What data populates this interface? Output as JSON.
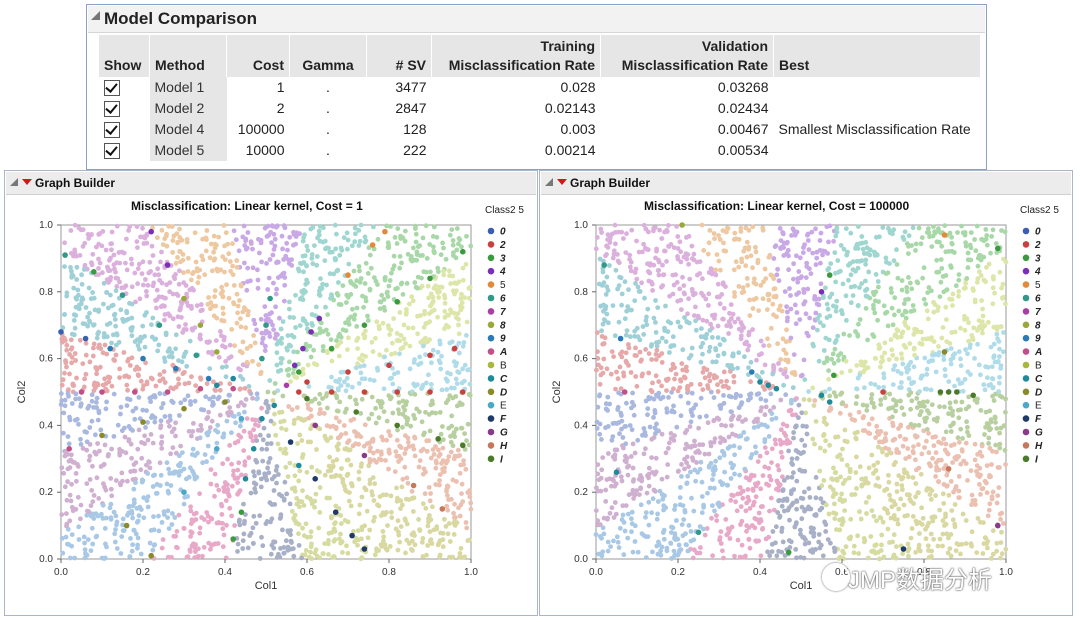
{
  "model_comparison": {
    "title": "Model Comparison",
    "headers": {
      "show": "Show",
      "method": "Method",
      "cost": "Cost",
      "gamma": "Gamma",
      "sv": "# SV",
      "train_line1": "Training",
      "train_line2": "Misclassification Rate",
      "valid_line1": "Validation",
      "valid_line2": "Misclassification Rate",
      "best": "Best"
    },
    "rows": [
      {
        "method": "Model 1",
        "cost": "1",
        "gamma": ".",
        "sv": "3477",
        "train": "0.028",
        "valid": "0.03268",
        "best": ""
      },
      {
        "method": "Model 2",
        "cost": "2",
        "gamma": ".",
        "sv": "2847",
        "train": "0.02143",
        "valid": "0.02434",
        "best": ""
      },
      {
        "method": "Model 4",
        "cost": "100000",
        "gamma": ".",
        "sv": "128",
        "train": "0.003",
        "valid": "0.00467",
        "best": "Smallest Misclassification Rate"
      },
      {
        "method": "Model 5",
        "cost": "10000",
        "gamma": ".",
        "sv": "222",
        "train": "0.00214",
        "valid": "0.00534",
        "best": ""
      }
    ]
  },
  "graph_builder_left": {
    "header": "Graph Builder"
  },
  "graph_builder_right": {
    "header": "Graph Builder"
  },
  "legend": {
    "title": "Class2 5",
    "classes": [
      {
        "label": "0",
        "color": "#3a5fb0",
        "bold": true
      },
      {
        "label": "2",
        "color": "#c8413f",
        "bold": true
      },
      {
        "label": "3",
        "color": "#3a9a3e",
        "bold": true
      },
      {
        "label": "4",
        "color": "#7a2fb6",
        "bold": true
      },
      {
        "label": "5",
        "color": "#e08a3a",
        "bold": false
      },
      {
        "label": "6",
        "color": "#2f9a8a",
        "bold": true
      },
      {
        "label": "7",
        "color": "#a83fa8",
        "bold": true
      },
      {
        "label": "8",
        "color": "#9aa83a",
        "bold": true
      },
      {
        "label": "9",
        "color": "#2a7ab8",
        "bold": true
      },
      {
        "label": "A",
        "color": "#c04f8a",
        "bold": true
      },
      {
        "label": "B",
        "color": "#a8b83a",
        "bold": false
      },
      {
        "label": "C",
        "color": "#1f8a9a",
        "bold": true
      },
      {
        "label": "D",
        "color": "#8a8a2a",
        "bold": true
      },
      {
        "label": "E",
        "color": "#4aa8c8",
        "bold": false
      },
      {
        "label": "F",
        "color": "#1f3a6a",
        "bold": true
      },
      {
        "label": "G",
        "color": "#8a3a8a",
        "bold": true
      },
      {
        "label": "H",
        "color": "#c8785a",
        "bold": true
      },
      {
        "label": "I",
        "color": "#4a7a2a",
        "bold": true
      }
    ]
  },
  "watermark": "JMP数据分析",
  "chart_data": [
    {
      "type": "scatter",
      "title": "Misclassification: Linear kernel, Cost = 1",
      "xlabel": "Col1",
      "ylabel": "Col2",
      "xlim": [
        0,
        1
      ],
      "ylim": [
        0,
        1
      ],
      "x_ticks": [
        "0.0",
        "0.2",
        "0.4",
        "0.6",
        "0.8",
        "1.0"
      ],
      "y_ticks": [
        "0.0",
        "0.2",
        "0.4",
        "0.6",
        "0.8",
        "1.0"
      ],
      "background_classes": 18,
      "center": [
        0.5,
        0.5
      ],
      "misclassified_points": [
        {
          "x": 0.22,
          "y": 0.98,
          "c": "#7a2fb6"
        },
        {
          "x": 0.26,
          "y": 0.88,
          "c": "#7a2fb6"
        },
        {
          "x": 0.3,
          "y": 0.78,
          "c": "#9aa83a"
        },
        {
          "x": 0.34,
          "y": 0.7,
          "c": "#9aa83a"
        },
        {
          "x": 0.38,
          "y": 0.62,
          "c": "#9aa83a"
        },
        {
          "x": 0.01,
          "y": 0.91,
          "c": "#2f9a8a"
        },
        {
          "x": 0.08,
          "y": 0.86,
          "c": "#3a9a3e"
        },
        {
          "x": 0.15,
          "y": 0.79,
          "c": "#2f9a8a"
        },
        {
          "x": 0.24,
          "y": 0.7,
          "c": "#2f9a8a"
        },
        {
          "x": 0.33,
          "y": 0.61,
          "c": "#2f9a8a"
        },
        {
          "x": 0.42,
          "y": 0.54,
          "c": "#1f8a9a"
        },
        {
          "x": 0.0,
          "y": 0.68,
          "c": "#3a5fb0"
        },
        {
          "x": 0.06,
          "y": 0.66,
          "c": "#3a5fb0"
        },
        {
          "x": 0.12,
          "y": 0.63,
          "c": "#2a7ab8"
        },
        {
          "x": 0.2,
          "y": 0.6,
          "c": "#2a7ab8"
        },
        {
          "x": 0.28,
          "y": 0.57,
          "c": "#2a7ab8"
        },
        {
          "x": 0.36,
          "y": 0.54,
          "c": "#2a7ab8"
        },
        {
          "x": 0.05,
          "y": 0.5,
          "c": "#c04f8a"
        },
        {
          "x": 0.1,
          "y": 0.5,
          "c": "#c04f8a"
        },
        {
          "x": 0.18,
          "y": 0.5,
          "c": "#c04f8a"
        },
        {
          "x": 0.26,
          "y": 0.5,
          "c": "#c04f8a"
        },
        {
          "x": 0.34,
          "y": 0.51,
          "c": "#c04f8a"
        },
        {
          "x": 0.42,
          "y": 0.51,
          "c": "#c04f8a"
        },
        {
          "x": 0.02,
          "y": 0.33,
          "c": "#c04f8a"
        },
        {
          "x": 0.1,
          "y": 0.37,
          "c": "#8a8a2a"
        },
        {
          "x": 0.2,
          "y": 0.41,
          "c": "#8a8a2a"
        },
        {
          "x": 0.3,
          "y": 0.45,
          "c": "#8a8a2a"
        },
        {
          "x": 0.4,
          "y": 0.47,
          "c": "#8a8a2a"
        },
        {
          "x": 0.16,
          "y": 0.1,
          "c": "#8a8a2a"
        },
        {
          "x": 0.22,
          "y": 0.01,
          "c": "#8a8a2a"
        },
        {
          "x": 0.3,
          "y": 0.2,
          "c": "#4aa8c8"
        },
        {
          "x": 0.38,
          "y": 0.33,
          "c": "#4aa8c8"
        },
        {
          "x": 0.44,
          "y": 0.42,
          "c": "#4aa8c8"
        },
        {
          "x": 0.42,
          "y": 0.06,
          "c": "#3a9a3e"
        },
        {
          "x": 0.44,
          "y": 0.14,
          "c": "#3a9a3e"
        },
        {
          "x": 0.45,
          "y": 0.24,
          "c": "#1f8a9a"
        },
        {
          "x": 0.47,
          "y": 0.33,
          "c": "#1f8a9a"
        },
        {
          "x": 0.49,
          "y": 0.42,
          "c": "#1f8a9a"
        },
        {
          "x": 0.56,
          "y": 0.35,
          "c": "#1f3a6a"
        },
        {
          "x": 0.62,
          "y": 0.24,
          "c": "#1f3a6a"
        },
        {
          "x": 0.67,
          "y": 0.14,
          "c": "#1f3a6a"
        },
        {
          "x": 0.71,
          "y": 0.07,
          "c": "#1f3a6a"
        },
        {
          "x": 0.74,
          "y": 0.03,
          "c": "#1f3a6a"
        },
        {
          "x": 0.62,
          "y": 0.4,
          "c": "#8a3a8a"
        },
        {
          "x": 0.74,
          "y": 0.31,
          "c": "#8a3a8a"
        },
        {
          "x": 0.86,
          "y": 0.22,
          "c": "#c8785a"
        },
        {
          "x": 0.93,
          "y": 0.15,
          "c": "#c8785a"
        },
        {
          "x": 0.6,
          "y": 0.48,
          "c": "#4a7a2a"
        },
        {
          "x": 0.72,
          "y": 0.44,
          "c": "#4a7a2a"
        },
        {
          "x": 0.82,
          "y": 0.4,
          "c": "#4a7a2a"
        },
        {
          "x": 0.92,
          "y": 0.36,
          "c": "#4a7a2a"
        },
        {
          "x": 0.98,
          "y": 0.34,
          "c": "#4a7a2a"
        },
        {
          "x": 0.58,
          "y": 0.5,
          "c": "#c8413f"
        },
        {
          "x": 0.66,
          "y": 0.5,
          "c": "#c8413f"
        },
        {
          "x": 0.74,
          "y": 0.5,
          "c": "#c8413f"
        },
        {
          "x": 0.82,
          "y": 0.5,
          "c": "#c8413f"
        },
        {
          "x": 0.9,
          "y": 0.5,
          "c": "#c8413f"
        },
        {
          "x": 0.98,
          "y": 0.5,
          "c": "#c8413f"
        },
        {
          "x": 0.6,
          "y": 0.53,
          "c": "#c8413f"
        },
        {
          "x": 0.7,
          "y": 0.56,
          "c": "#c8413f"
        },
        {
          "x": 0.8,
          "y": 0.58,
          "c": "#c8413f"
        },
        {
          "x": 0.9,
          "y": 0.61,
          "c": "#c8413f"
        },
        {
          "x": 0.96,
          "y": 0.63,
          "c": "#c8413f"
        },
        {
          "x": 0.58,
          "y": 0.56,
          "c": "#3a9a3e"
        },
        {
          "x": 0.66,
          "y": 0.63,
          "c": "#3a9a3e"
        },
        {
          "x": 0.74,
          "y": 0.7,
          "c": "#3a9a3e"
        },
        {
          "x": 0.82,
          "y": 0.77,
          "c": "#3a9a3e"
        },
        {
          "x": 0.9,
          "y": 0.84,
          "c": "#3a9a3e"
        },
        {
          "x": 0.98,
          "y": 0.92,
          "c": "#3a9a3e"
        },
        {
          "x": 0.55,
          "y": 0.52,
          "c": "#a83fa8"
        },
        {
          "x": 0.57,
          "y": 0.58,
          "c": "#7a2fb6"
        },
        {
          "x": 0.59,
          "y": 0.63,
          "c": "#7a2fb6"
        },
        {
          "x": 0.61,
          "y": 0.68,
          "c": "#7a2fb6"
        },
        {
          "x": 0.63,
          "y": 0.72,
          "c": "#7a2fb6"
        },
        {
          "x": 0.7,
          "y": 0.85,
          "c": "#e08a3a"
        },
        {
          "x": 0.76,
          "y": 0.94,
          "c": "#e08a3a"
        },
        {
          "x": 0.79,
          "y": 0.98,
          "c": "#e08a3a"
        },
        {
          "x": 0.49,
          "y": 0.6,
          "c": "#2f9a8a"
        },
        {
          "x": 0.5,
          "y": 0.7,
          "c": "#2f9a8a"
        },
        {
          "x": 0.51,
          "y": 0.78,
          "c": "#2f9a8a"
        },
        {
          "x": 0.58,
          "y": 0.28,
          "c": "#1f8a9a"
        },
        {
          "x": 0.38,
          "y": 0.52,
          "c": "#1f8a9a"
        },
        {
          "x": 0.52,
          "y": 0.46,
          "c": "#1f8a9a"
        }
      ]
    },
    {
      "type": "scatter",
      "title": "Misclassification: Linear kernel, Cost = 100000",
      "xlabel": "Col1",
      "ylabel": "Col2",
      "xlim": [
        0,
        1
      ],
      "ylim": [
        0,
        1
      ],
      "x_ticks": [
        "0.0",
        "0.2",
        "0.4",
        "0.6",
        "0.8",
        "1.0"
      ],
      "y_ticks": [
        "0.0",
        "0.2",
        "0.4",
        "0.6",
        "0.8",
        "1.0"
      ],
      "background_classes": 18,
      "center": [
        0.5,
        0.5
      ],
      "misclassified_points": [
        {
          "x": 0.21,
          "y": 1.0,
          "c": "#9aa83a"
        },
        {
          "x": 0.55,
          "y": 0.8,
          "c": "#7a2fb6"
        },
        {
          "x": 0.57,
          "y": 0.85,
          "c": "#3a9a3e"
        },
        {
          "x": 0.02,
          "y": 0.88,
          "c": "#2f9a8a"
        },
        {
          "x": 0.06,
          "y": 0.66,
          "c": "#2a7ab8"
        },
        {
          "x": 0.38,
          "y": 0.56,
          "c": "#2a7ab8"
        },
        {
          "x": 0.07,
          "y": 0.5,
          "c": "#c04f8a"
        },
        {
          "x": 0.4,
          "y": 0.53,
          "c": "#1f8a9a"
        },
        {
          "x": 0.42,
          "y": 0.52,
          "c": "#1f8a9a"
        },
        {
          "x": 0.44,
          "y": 0.51,
          "c": "#1f8a9a"
        },
        {
          "x": 0.05,
          "y": 0.26,
          "c": "#1f8a9a"
        },
        {
          "x": 0.25,
          "y": 0.08,
          "c": "#2f9a8a"
        },
        {
          "x": 0.47,
          "y": 0.02,
          "c": "#3a9a3e"
        },
        {
          "x": 0.7,
          "y": 0.5,
          "c": "#c8413f"
        },
        {
          "x": 0.84,
          "y": 0.5,
          "c": "#4a7a2a"
        },
        {
          "x": 0.86,
          "y": 0.5,
          "c": "#4a7a2a"
        },
        {
          "x": 0.88,
          "y": 0.5,
          "c": "#4a7a2a"
        },
        {
          "x": 0.92,
          "y": 0.49,
          "c": "#4a7a2a"
        },
        {
          "x": 0.85,
          "y": 0.62,
          "c": "#8a8a2a"
        },
        {
          "x": 0.86,
          "y": 0.27,
          "c": "#c8785a"
        },
        {
          "x": 0.98,
          "y": 0.1,
          "c": "#8a3a8a"
        },
        {
          "x": 0.55,
          "y": 0.49,
          "c": "#1f8a9a"
        },
        {
          "x": 0.57,
          "y": 0.47,
          "c": "#1f8a9a"
        },
        {
          "x": 0.58,
          "y": 0.55,
          "c": "#3a9a3e"
        },
        {
          "x": 0.98,
          "y": 0.93,
          "c": "#3a9a3e"
        },
        {
          "x": 0.85,
          "y": 0.97,
          "c": "#e08a3a"
        },
        {
          "x": 0.75,
          "y": 0.03,
          "c": "#1f3a6a"
        }
      ]
    }
  ]
}
